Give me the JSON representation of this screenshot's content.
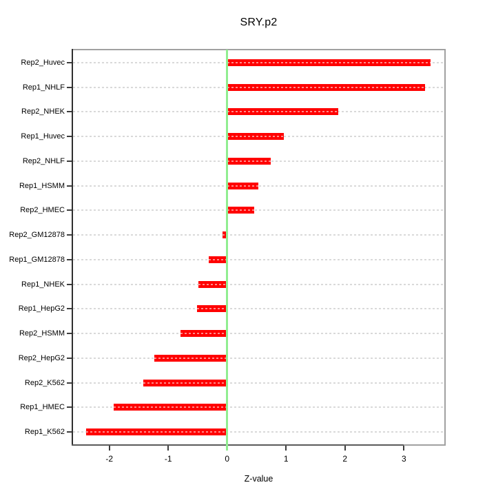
{
  "chart_data": {
    "type": "bar",
    "orientation": "horizontal",
    "title": "SRY.p2",
    "xlabel": "Z-value",
    "ylabel": "",
    "categories": [
      "Rep2_Huvec",
      "Rep1_NHLF",
      "Rep2_NHEK",
      "Rep1_Huvec",
      "Rep2_NHLF",
      "Rep1_HSMM",
      "Rep2_HMEC",
      "Rep2_GM12878",
      "Rep1_GM12878",
      "Rep1_NHEK",
      "Rep1_HepG2",
      "Rep2_HSMM",
      "Rep2_HepG2",
      "Rep2_K562",
      "Rep1_HMEC",
      "Rep1_K562"
    ],
    "values": [
      3.48,
      3.38,
      1.89,
      0.96,
      0.74,
      0.53,
      0.46,
      -0.08,
      -0.32,
      -0.49,
      -0.52,
      -0.8,
      -1.25,
      -1.44,
      -1.95,
      -2.42
    ],
    "xticks": [
      -2,
      -1,
      0,
      1,
      2,
      3
    ],
    "xtick_labels": [
      "-2",
      "-1",
      "0",
      "1",
      "2",
      "3"
    ],
    "xlim": [
      -2.64,
      3.71
    ],
    "zero_line_x": 0,
    "grid": "dashed-horizontal-per-category",
    "legend": null
  },
  "colors": {
    "bar": "#ff0000",
    "zero_line": "#90ee90",
    "grid": "#d9d9d9",
    "box_border": "#a0a0a0",
    "axis_dark": "#3c3c3c",
    "background": "#ffffff",
    "text": "#000000"
  }
}
